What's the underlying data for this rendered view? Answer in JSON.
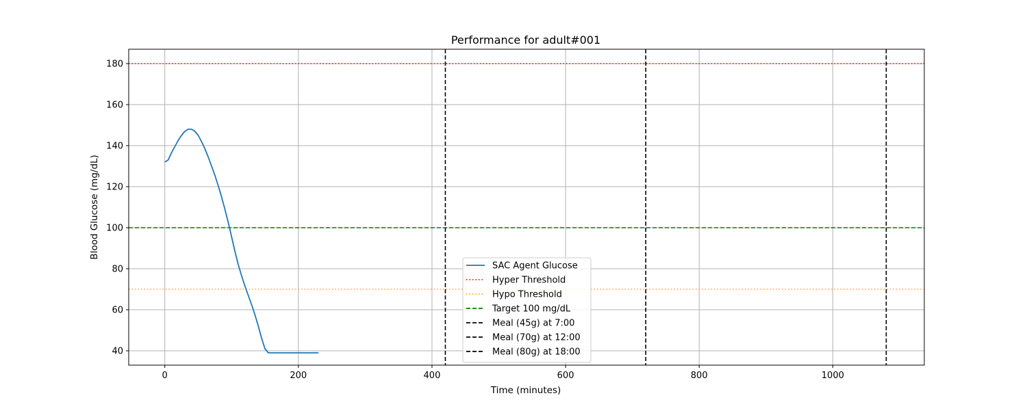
{
  "chart_data": {
    "type": "line",
    "title": "Performance for adult#001",
    "xlabel": "Time (minutes)",
    "ylabel": "Blood Glucose (mg/dL)",
    "xlim": [
      -54,
      1137
    ],
    "ylim": [
      33,
      187
    ],
    "xticks": [
      0,
      200,
      400,
      600,
      800,
      1000
    ],
    "yticks": [
      40,
      60,
      80,
      100,
      120,
      140,
      160,
      180
    ],
    "grid": true,
    "legend_position": "lower-center",
    "series": [
      {
        "name": "SAC Agent Glucose",
        "color": "#1f77b4",
        "style": "solid",
        "x": [
          0,
          5,
          10,
          15,
          20,
          25,
          30,
          35,
          40,
          45,
          50,
          55,
          60,
          65,
          70,
          75,
          80,
          85,
          90,
          95,
          100,
          105,
          110,
          115,
          120,
          125,
          130,
          135,
          140,
          145,
          150,
          155,
          160,
          165,
          170,
          175,
          180,
          190,
          200,
          210,
          220,
          230
        ],
        "y": [
          132,
          133,
          136.5,
          139.5,
          142.5,
          145,
          147,
          148,
          148,
          147,
          145,
          142,
          138.5,
          134.5,
          130,
          125.5,
          120.5,
          115,
          109,
          102.5,
          95.5,
          88.5,
          82,
          76.5,
          71.5,
          67,
          62.5,
          57.5,
          52,
          46,
          41,
          39,
          39,
          39,
          39,
          39,
          39,
          39,
          39,
          39,
          39,
          39
        ]
      }
    ],
    "hlines": [
      {
        "name": "Hyper Threshold",
        "y": 180,
        "color": "#ff0000",
        "style": "dotted"
      },
      {
        "name": "Hypo Threshold",
        "y": 70,
        "color": "#ffa500",
        "style": "dotted"
      },
      {
        "name": "Target 100 mg/dL",
        "y": 100,
        "color": "#008000",
        "style": "dashed"
      }
    ],
    "vlines": [
      {
        "name": "Meal (45g) at 7:00",
        "x": 420,
        "color": "#000000",
        "style": "dashed"
      },
      {
        "name": "Meal (70g) at 12:00",
        "x": 720,
        "color": "#000000",
        "style": "dashed"
      },
      {
        "name": "Meal (80g) at 18:00",
        "x": 1080,
        "color": "#000000",
        "style": "dashed"
      }
    ]
  }
}
